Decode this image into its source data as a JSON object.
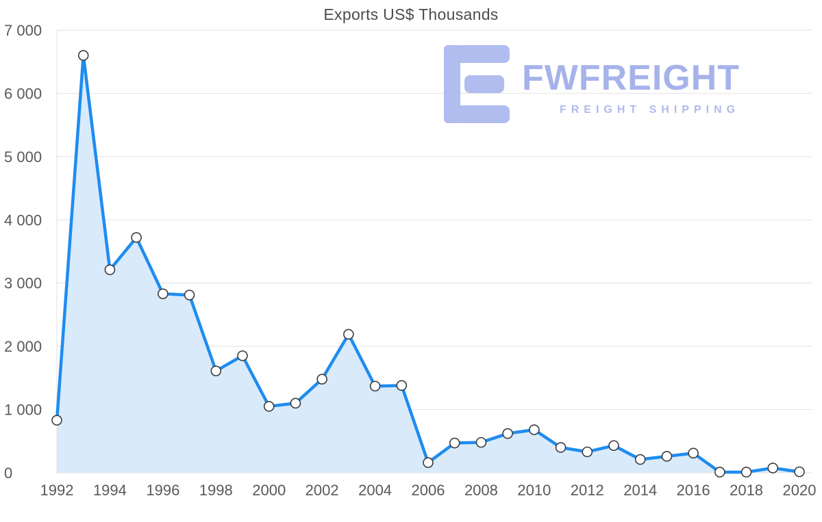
{
  "chart": {
    "title": "Exports US$ Thousands"
  },
  "watermark": {
    "name": "FWFREIGHT",
    "tagline": "FREIGHT SHIPPING",
    "color": "#9dabe8"
  },
  "chart_data": {
    "type": "area",
    "title": "Exports US$ Thousands",
    "x": [
      1992,
      1993,
      1994,
      1995,
      1996,
      1997,
      1998,
      1999,
      2000,
      2001,
      2002,
      2003,
      2004,
      2005,
      2006,
      2007,
      2008,
      2009,
      2010,
      2011,
      2012,
      2013,
      2014,
      2015,
      2016,
      2017,
      2018,
      2019,
      2020
    ],
    "values": [
      830,
      6600,
      3210,
      3720,
      2830,
      2810,
      1610,
      1850,
      1050,
      1100,
      1480,
      2190,
      1370,
      1380,
      160,
      470,
      480,
      620,
      680,
      400,
      330,
      430,
      210,
      260,
      310,
      10,
      10,
      75,
      15
    ],
    "xlabel": "",
    "ylabel": "",
    "ylim": [
      0,
      7000
    ],
    "y_ticks": [
      0,
      1000,
      2000,
      3000,
      4000,
      5000,
      6000,
      7000
    ],
    "y_tick_labels": [
      "0",
      "1 000",
      "2 000",
      "3 000",
      "4 000",
      "5 000",
      "6 000",
      "7 000"
    ],
    "x_tick_labels": [
      "1992",
      "1994",
      "1996",
      "1998",
      "2000",
      "2002",
      "2004",
      "2006",
      "2008",
      "2010",
      "2012",
      "2014",
      "2016",
      "2018",
      "2020"
    ],
    "x_tick_step": 2,
    "grid": true,
    "legend": "none",
    "line_color": "#1f8cf0",
    "area_color": "#d9eafb",
    "marker_fill": "#ffffff",
    "marker_stroke": "#3c3c3c",
    "grid_color": "#e2e2e2",
    "tick_label_color": "#595959"
  }
}
